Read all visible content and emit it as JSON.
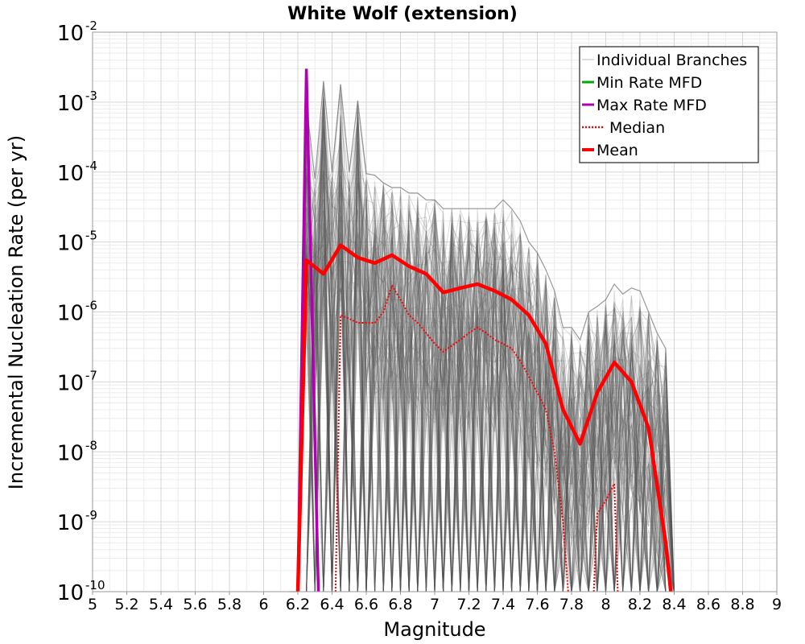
{
  "chart_data": {
    "type": "line",
    "title": "White Wolf (extension)",
    "xlabel": "Magnitude",
    "ylabel": "Incremental Nucleation Rate (per yr)",
    "xlim": [
      5,
      9
    ],
    "ylim_log10": [
      -10,
      -2
    ],
    "x_ticks": [
      "5",
      "5.2",
      "5.4",
      "5.6",
      "5.8",
      "6",
      "6.2",
      "6.4",
      "6.6",
      "6.8",
      "7",
      "7.2",
      "7.4",
      "7.6",
      "7.8",
      "8",
      "8.2",
      "8.4",
      "8.6",
      "8.8",
      "9"
    ],
    "y_ticks": [
      {
        "base": "10",
        "exp": "-2"
      },
      {
        "base": "10",
        "exp": "-3"
      },
      {
        "base": "10",
        "exp": "-4"
      },
      {
        "base": "10",
        "exp": "-5"
      },
      {
        "base": "10",
        "exp": "-6"
      },
      {
        "base": "10",
        "exp": "-7"
      },
      {
        "base": "10",
        "exp": "-8"
      },
      {
        "base": "10",
        "exp": "-9"
      },
      {
        "base": "10",
        "exp": "-10"
      }
    ],
    "grid": true,
    "legend_position": "top-right",
    "series": [
      {
        "name": "Individual Branches",
        "color": "#555555",
        "note": "upper envelope of many individual branches",
        "x": [
          6.15,
          6.2,
          6.25,
          6.3,
          6.35,
          6.4,
          6.45,
          6.5,
          6.55,
          6.6,
          6.65,
          6.7,
          6.75,
          6.8,
          6.85,
          6.9,
          6.95,
          7.0,
          7.05,
          7.1,
          7.15,
          7.2,
          7.25,
          7.3,
          7.35,
          7.4,
          7.45,
          7.5,
          7.55,
          7.6,
          7.65,
          7.7,
          7.75,
          7.8,
          7.85,
          7.9,
          7.95,
          8.0,
          8.05,
          8.1,
          8.15,
          8.2,
          8.25,
          8.3,
          8.35,
          8.4
        ],
        "y": [
          1e-10,
          1e-10,
          0.00095,
          8e-05,
          0.002,
          0.0001,
          0.0018,
          0.0001,
          0.00105,
          9.5e-05,
          9e-05,
          7e-05,
          6e-05,
          6e-05,
          5e-05,
          5e-05,
          4e-05,
          4e-05,
          3e-05,
          3e-05,
          3e-05,
          3e-05,
          3e-05,
          3e-05,
          3e-05,
          4e-05,
          3e-05,
          2e-05,
          1e-05,
          7e-06,
          4e-06,
          2e-06,
          6e-07,
          6e-07,
          4e-07,
          1e-06,
          1.2e-06,
          1.5e-06,
          2.5e-06,
          1.8e-06,
          2.2e-06,
          2e-06,
          1e-06,
          5e-07,
          3e-07,
          1e-10
        ]
      },
      {
        "name": "Min Rate MFD",
        "color": "#00aa00",
        "x": [],
        "y": []
      },
      {
        "name": "Max Rate MFD",
        "color": "#b000b0",
        "x": [
          6.2,
          6.25,
          6.32
        ],
        "y": [
          1e-10,
          0.003,
          1e-10
        ]
      },
      {
        "name": "Median",
        "color": "#ff0000",
        "x": [
          6.42,
          6.45,
          6.5,
          6.55,
          6.6,
          6.65,
          6.7,
          6.75,
          6.8,
          6.85,
          6.9,
          6.95,
          7.0,
          7.05,
          7.1,
          7.15,
          7.2,
          7.25,
          7.3,
          7.35,
          7.4,
          7.45,
          7.5,
          7.55,
          7.6,
          7.65,
          7.7,
          7.75,
          7.78
        ],
        "y": [
          1e-10,
          9e-07,
          8e-07,
          7e-07,
          7e-07,
          7e-07,
          1e-06,
          2.4e-06,
          1.5e-06,
          9e-07,
          7e-07,
          5e-07,
          3.5e-07,
          2.7e-07,
          3.3e-07,
          4e-07,
          5e-07,
          6e-07,
          5e-07,
          4e-07,
          3.5e-07,
          3e-07,
          2e-07,
          1.2e-07,
          7e-08,
          4e-08,
          1e-08,
          1e-09,
          1e-10
        ],
        "x2": [
          7.93,
          7.95,
          8.0,
          8.05,
          8.07
        ],
        "y2": [
          1e-10,
          1.3e-09,
          2e-09,
          3.5e-09,
          1e-10
        ]
      },
      {
        "name": "Mean",
        "color": "#ff0000",
        "x": [
          6.2,
          6.25,
          6.35,
          6.45,
          6.55,
          6.65,
          6.75,
          6.85,
          6.95,
          7.05,
          7.15,
          7.25,
          7.35,
          7.45,
          7.55,
          7.65,
          7.75,
          7.85,
          7.95,
          8.05,
          8.15,
          8.25,
          8.35,
          8.38
        ],
        "y": [
          1e-10,
          5.5e-06,
          3.5e-06,
          9e-06,
          6e-06,
          5e-06,
          6.5e-06,
          4.5e-06,
          3.5e-06,
          1.9e-06,
          2.2e-06,
          2.5e-06,
          2e-06,
          1.5e-06,
          9e-07,
          3.5e-07,
          4e-08,
          1.3e-08,
          7e-08,
          1.9e-07,
          1e-07,
          2.2e-08,
          5e-10,
          1e-10
        ]
      }
    ]
  }
}
